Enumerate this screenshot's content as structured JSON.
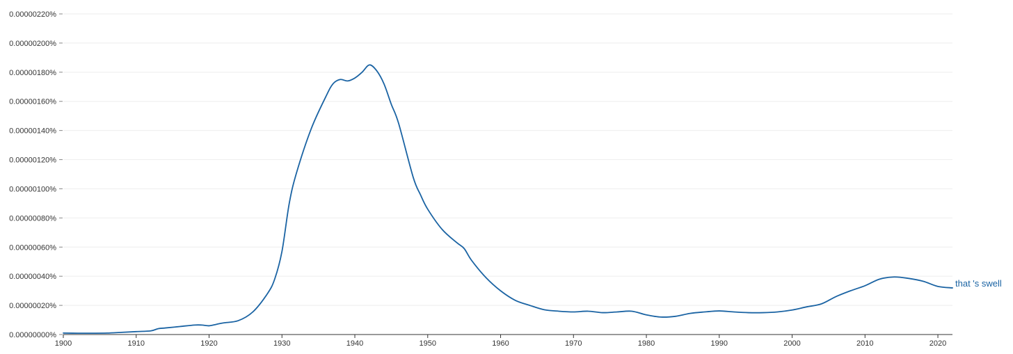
{
  "chart_data": {
    "type": "line",
    "title": "",
    "xlabel": "",
    "ylabel": "",
    "xlim": [
      1900,
      2022
    ],
    "ylim": [
      0,
      2.2e-06
    ],
    "grid": true,
    "legend": "inline at line end",
    "x_ticks": [
      1900,
      1910,
      1920,
      1930,
      1940,
      1950,
      1960,
      1970,
      1980,
      1990,
      2000,
      2010,
      2020
    ],
    "x_tick_labels": [
      "1900",
      "1910",
      "1920",
      "1930",
      "1940",
      "1950",
      "1960",
      "1970",
      "1980",
      "1990",
      "2000",
      "2010",
      "2020"
    ],
    "y_ticks": [
      0,
      2e-07,
      4e-07,
      6e-07,
      8e-07,
      1e-06,
      1.2e-06,
      1.4e-06,
      1.6e-06,
      1.8e-06,
      2e-06,
      2.2e-06
    ],
    "y_tick_labels": [
      "0.00000000%",
      "0.00000020%",
      "0.00000040%",
      "0.00000060%",
      "0.00000080%",
      "0.00000100%",
      "0.00000120%",
      "0.00000140%",
      "0.00000160%",
      "0.00000180%",
      "0.00000200%",
      "0.00000220%"
    ],
    "series": [
      {
        "name": "that 's swell",
        "color": "#1a63a3",
        "x": [
          1900,
          1902,
          1904,
          1906,
          1908,
          1910,
          1912,
          1913,
          1914,
          1916,
          1918,
          1919,
          1920,
          1921,
          1922,
          1924,
          1926,
          1928,
          1929,
          1930,
          1931,
          1932,
          1934,
          1936,
          1937,
          1938,
          1939,
          1940,
          1941,
          1942,
          1943,
          1944,
          1945,
          1946,
          1948,
          1949,
          1950,
          1952,
          1954,
          1955,
          1956,
          1958,
          1960,
          1962,
          1964,
          1966,
          1968,
          1970,
          1972,
          1974,
          1976,
          1978,
          1980,
          1982,
          1984,
          1986,
          1988,
          1990,
          1992,
          1994,
          1996,
          1998,
          2000,
          2002,
          2004,
          2006,
          2008,
          2010,
          2012,
          2014,
          2016,
          2018,
          2020,
          2022
        ],
        "y": [
          1e-08,
          9e-09,
          9e-09,
          1e-08,
          1.5e-08,
          2e-08,
          2.5e-08,
          4e-08,
          4.5e-08,
          5.5e-08,
          6.5e-08,
          6.5e-08,
          6e-08,
          7e-08,
          8e-08,
          9.5e-08,
          1.55e-07,
          2.8e-07,
          3.8e-07,
          5.7e-07,
          9e-07,
          1.11e-06,
          1.41e-06,
          1.63e-06,
          1.72e-06,
          1.75e-06,
          1.74e-06,
          1.76e-06,
          1.8e-06,
          1.85e-06,
          1.81e-06,
          1.72e-06,
          1.58e-06,
          1.45e-06,
          1.08e-06,
          9.6e-07,
          8.6e-07,
          7.2e-07,
          6.3e-07,
          5.9e-07,
          5.1e-07,
          3.9e-07,
          3e-07,
          2.35e-07,
          2e-07,
          1.7e-07,
          1.6e-07,
          1.55e-07,
          1.6e-07,
          1.5e-07,
          1.55e-07,
          1.6e-07,
          1.35e-07,
          1.2e-07,
          1.25e-07,
          1.45e-07,
          1.55e-07,
          1.62e-07,
          1.55e-07,
          1.5e-07,
          1.5e-07,
          1.55e-07,
          1.68e-07,
          1.9e-07,
          2.1e-07,
          2.6e-07,
          3e-07,
          3.35e-07,
          3.8e-07,
          3.95e-07,
          3.85e-07,
          3.65e-07,
          3.3e-07,
          3.2e-07
        ]
      }
    ]
  }
}
